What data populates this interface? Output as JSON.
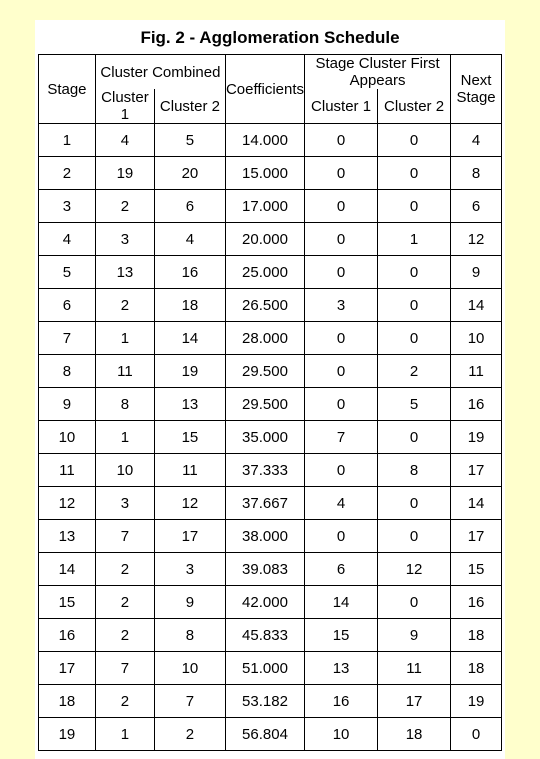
{
  "title": "Fig. 2 - Agglomeration Schedule",
  "headers": {
    "grp_combined": "Cluster Combined",
    "grp_appears": "Stage Cluster First Appears",
    "stage": "Stage",
    "c1": "Cluster 1",
    "c2": "Cluster 2",
    "coef": "Coefficients",
    "s1": "Cluster 1",
    "s2": "Cluster 2",
    "next": "Next Stage"
  },
  "rows": [
    {
      "stage": "1",
      "c1": "4",
      "c2": "5",
      "coef": "14.000",
      "s1": "0",
      "s2": "0",
      "next": "4"
    },
    {
      "stage": "2",
      "c1": "19",
      "c2": "20",
      "coef": "15.000",
      "s1": "0",
      "s2": "0",
      "next": "8"
    },
    {
      "stage": "3",
      "c1": "2",
      "c2": "6",
      "coef": "17.000",
      "s1": "0",
      "s2": "0",
      "next": "6"
    },
    {
      "stage": "4",
      "c1": "3",
      "c2": "4",
      "coef": "20.000",
      "s1": "0",
      "s2": "1",
      "next": "12"
    },
    {
      "stage": "5",
      "c1": "13",
      "c2": "16",
      "coef": "25.000",
      "s1": "0",
      "s2": "0",
      "next": "9"
    },
    {
      "stage": "6",
      "c1": "2",
      "c2": "18",
      "coef": "26.500",
      "s1": "3",
      "s2": "0",
      "next": "14"
    },
    {
      "stage": "7",
      "c1": "1",
      "c2": "14",
      "coef": "28.000",
      "s1": "0",
      "s2": "0",
      "next": "10"
    },
    {
      "stage": "8",
      "c1": "11",
      "c2": "19",
      "coef": "29.500",
      "s1": "0",
      "s2": "2",
      "next": "11"
    },
    {
      "stage": "9",
      "c1": "8",
      "c2": "13",
      "coef": "29.500",
      "s1": "0",
      "s2": "5",
      "next": "16"
    },
    {
      "stage": "10",
      "c1": "1",
      "c2": "15",
      "coef": "35.000",
      "s1": "7",
      "s2": "0",
      "next": "19"
    },
    {
      "stage": "11",
      "c1": "10",
      "c2": "11",
      "coef": "37.333",
      "s1": "0",
      "s2": "8",
      "next": "17"
    },
    {
      "stage": "12",
      "c1": "3",
      "c2": "12",
      "coef": "37.667",
      "s1": "4",
      "s2": "0",
      "next": "14"
    },
    {
      "stage": "13",
      "c1": "7",
      "c2": "17",
      "coef": "38.000",
      "s1": "0",
      "s2": "0",
      "next": "17"
    },
    {
      "stage": "14",
      "c1": "2",
      "c2": "3",
      "coef": "39.083",
      "s1": "6",
      "s2": "12",
      "next": "15"
    },
    {
      "stage": "15",
      "c1": "2",
      "c2": "9",
      "coef": "42.000",
      "s1": "14",
      "s2": "0",
      "next": "16"
    },
    {
      "stage": "16",
      "c1": "2",
      "c2": "8",
      "coef": "45.833",
      "s1": "15",
      "s2": "9",
      "next": "18"
    },
    {
      "stage": "17",
      "c1": "7",
      "c2": "10",
      "coef": "51.000",
      "s1": "13",
      "s2": "11",
      "next": "18"
    },
    {
      "stage": "18",
      "c1": "2",
      "c2": "7",
      "coef": "53.182",
      "s1": "16",
      "s2": "17",
      "next": "19"
    },
    {
      "stage": "19",
      "c1": "1",
      "c2": "2",
      "coef": "56.804",
      "s1": "10",
      "s2": "18",
      "next": "0"
    }
  ],
  "colors": {
    "page_bg": "#ffffcc",
    "panel_bg": "#ffffff",
    "border": "#000000",
    "text": "#000000"
  }
}
